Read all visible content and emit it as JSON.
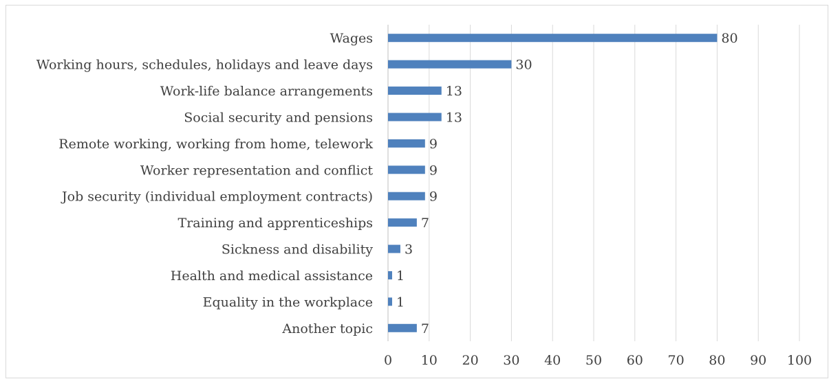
{
  "chart_data": {
    "type": "bar",
    "orientation": "horizontal",
    "categories": [
      "Wages",
      "Working hours, schedules, holidays and leave days",
      "Work-life balance arrangements",
      "Social security and pensions",
      "Remote working, working from home, telework",
      "Worker representation and conflict",
      "Job security (individual employment contracts)",
      "Training and apprenticeships",
      "Sickness and disability",
      "Health and medical assistance",
      "Equality in the workplace",
      "Another topic"
    ],
    "values": [
      80,
      30,
      13,
      13,
      9,
      9,
      9,
      7,
      3,
      1,
      1,
      7
    ],
    "data_labels": [
      "80",
      "30",
      "13",
      "13",
      "9",
      "9",
      "9",
      "7",
      "3",
      "1",
      "1",
      "7"
    ],
    "xlim": [
      0,
      100
    ],
    "xticks": [
      "0",
      "10",
      "20",
      "30",
      "40",
      "50",
      "60",
      "70",
      "80",
      "90",
      "100"
    ],
    "grid": true,
    "legend": "none",
    "bar_color": "#4f81bd"
  }
}
